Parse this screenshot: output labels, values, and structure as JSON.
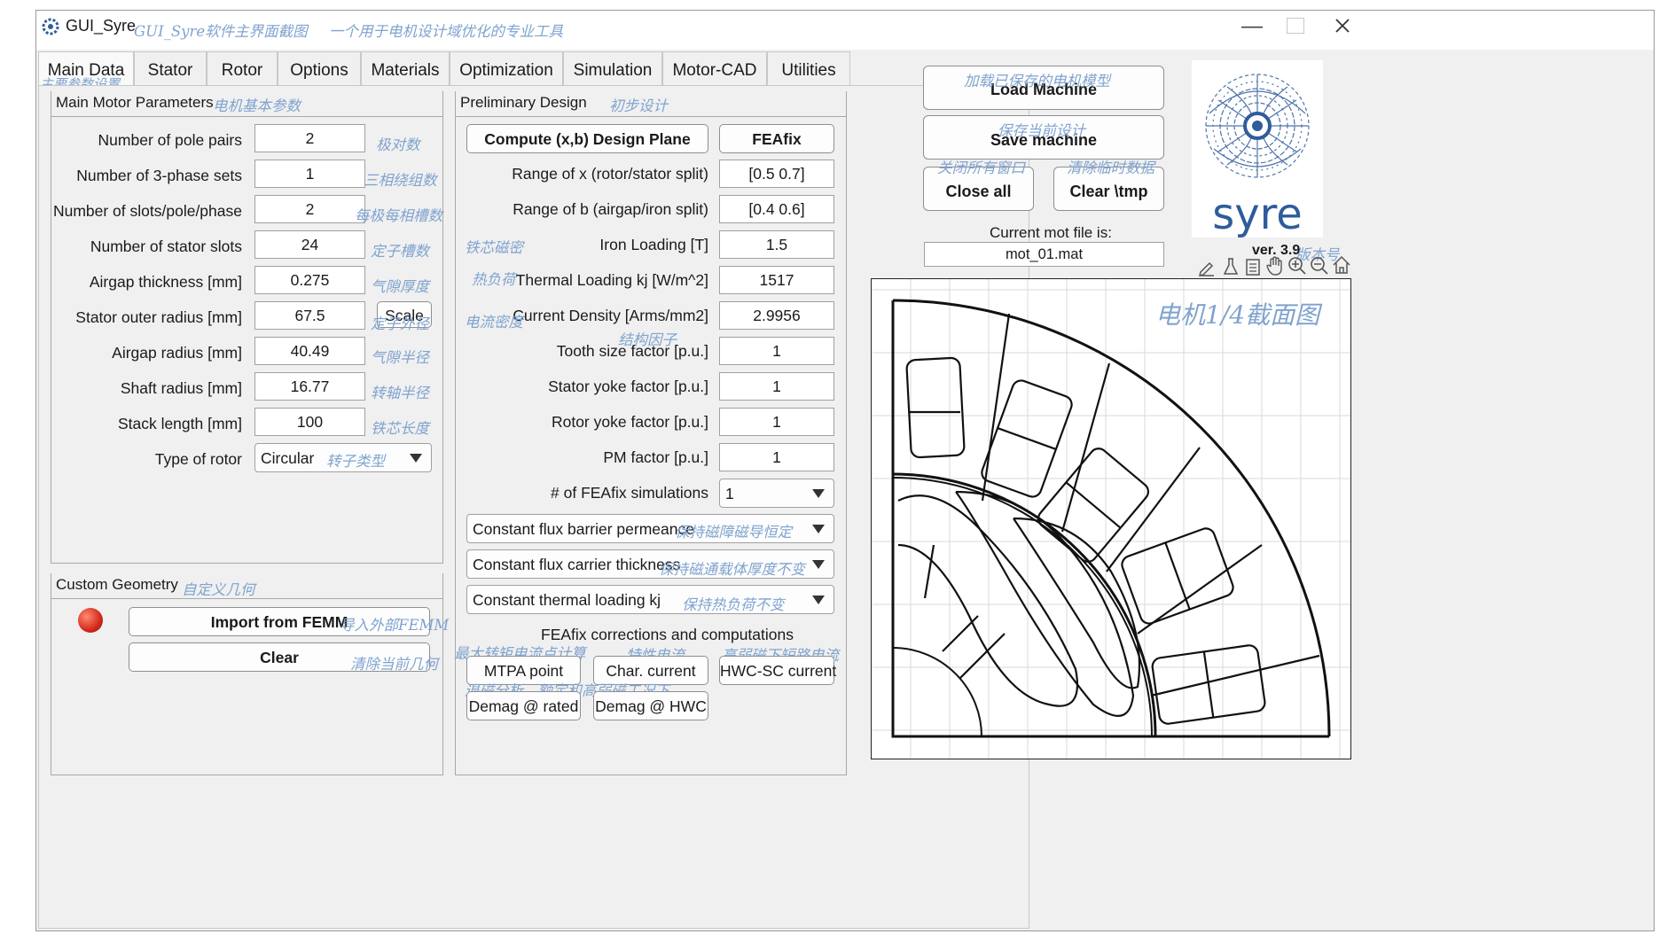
{
  "window": {
    "title": "GUI_Syre",
    "title_note": "GUI_Syre软件主界面截图",
    "title_note2": "一个用于电机设计域优化的专业工具"
  },
  "tabs": [
    {
      "label": "Main Data",
      "active": true
    },
    {
      "label": "Stator"
    },
    {
      "label": "Rotor"
    },
    {
      "label": "Options"
    },
    {
      "label": "Materials"
    },
    {
      "label": "Optimization"
    },
    {
      "label": "Simulation"
    },
    {
      "label": "Motor-CAD"
    },
    {
      "label": "Utilities"
    }
  ],
  "tab_note": "主要参数设置",
  "main_params": {
    "title": "Main Motor Parameters",
    "title_note": "电机基本参数",
    "rows": [
      {
        "label": "Number of pole pairs",
        "value": "2",
        "note": "极对数"
      },
      {
        "label": "Number of 3-phase sets",
        "value": "1",
        "note": "三相绕组数"
      },
      {
        "label": "Number of slots/pole/phase",
        "value": "2",
        "note": "每极每相槽数"
      },
      {
        "label": "Number of stator slots",
        "value": "24",
        "note": "定子槽数"
      },
      {
        "label": "Airgap thickness [mm]",
        "value": "0.275",
        "note": "气隙厚度"
      },
      {
        "label": "Stator outer radius [mm]",
        "value": "67.5",
        "note": "定子外径"
      },
      {
        "label": "Airgap radius [mm]",
        "value": "40.49",
        "note": "气隙半径"
      },
      {
        "label": "Shaft radius [mm]",
        "value": "16.77",
        "note": "转轴半径"
      },
      {
        "label": "Stack length [mm]",
        "value": "100",
        "note": "铁芯长度"
      }
    ],
    "scale_label": "Scale",
    "rotor_type_label": "Type of rotor",
    "rotor_type_value": "Circular",
    "rotor_type_note": "转子类型"
  },
  "custom_geometry": {
    "title": "Custom Geometry",
    "title_note": "自定义几何",
    "import_label": "Import from FEMM",
    "import_note": "导入外部FEMM",
    "clear_label": "Clear",
    "clear_note": "清除当前几何",
    "status_color": "#d42a1c"
  },
  "prelim": {
    "title": "Preliminary Design",
    "title_note": "初步设计",
    "compute_label": "Compute (x,b) Design Plane",
    "feafix_label": "FEAfix",
    "rows": [
      {
        "label": "Range of x (rotor/stator split)",
        "value": "[0.5 0.7]"
      },
      {
        "label": "Range of b (airgap/iron split)",
        "value": "[0.4 0.6]"
      },
      {
        "label": "Iron Loading [T]",
        "value": "1.5"
      },
      {
        "label": "Thermal Loading kj [W/m^2]",
        "value": "1517"
      },
      {
        "label": "Current Density [Arms/mm2]",
        "value": "2.9956"
      },
      {
        "label": "Tooth size factor [p.u.]",
        "value": "1"
      },
      {
        "label": "Stator yoke factor [p.u.]",
        "value": "1"
      },
      {
        "label": "Rotor yoke factor [p.u.]",
        "value": "1"
      },
      {
        "label": "PM factor [p.u.]",
        "value": "1"
      }
    ],
    "notes": {
      "iron": "铁芯磁密",
      "thermal": "热负荷",
      "current": "电流密度",
      "struct": "结构因子"
    },
    "feafix_sims_label": "# of FEAfix simulations",
    "feafix_sims_value": "1",
    "dropdowns": [
      {
        "value": "Constant flux barrier permeance",
        "note": "保持磁障磁导恒定"
      },
      {
        "value": "Constant flux carrier thickness",
        "note": "保持磁通载体厚度不变"
      },
      {
        "value": "Constant thermal loading kj",
        "note": "保持热负荷不变"
      }
    ],
    "corrections_label": "FEAfix corrections and computations",
    "mtpa_label": "MTPA point",
    "mtpa_note": "最大转矩电流点计算",
    "char_label": "Char. current",
    "char_note": "特性电流",
    "hwc_label": "HWC-SC current",
    "hwc_note": "高弱磁下短路电流",
    "demag_rated_label": "Demag @ rated",
    "demag_hwc_label": "Demag @ HWC",
    "demag_note": "退磁分析，额定和高弱磁工况下"
  },
  "right": {
    "load_label": "Load Machine",
    "load_note": "加载已保存的电机模型",
    "save_label": "Save machine",
    "save_note": "保存当前设计",
    "close_label": "Close all",
    "close_note": "关闭所有窗口",
    "clear_tmp_label": "Clear \\tmp",
    "clear_tmp_note": "清除临时数据",
    "current_file_label": "Current mot file is:",
    "current_file_value": "mot_01.mat",
    "version": "ver. 3.9",
    "version_note": "版本号",
    "logo_text": "syre",
    "plot_note": "电机1/4截面图"
  },
  "icons": [
    "edit-icon",
    "flask-icon",
    "legend-icon",
    "pan-icon",
    "zoom-in-icon",
    "zoom-out-icon",
    "home-icon"
  ],
  "colors": {
    "annotation": "#7fa3cf",
    "logo_blue": "#2e5c9c"
  }
}
